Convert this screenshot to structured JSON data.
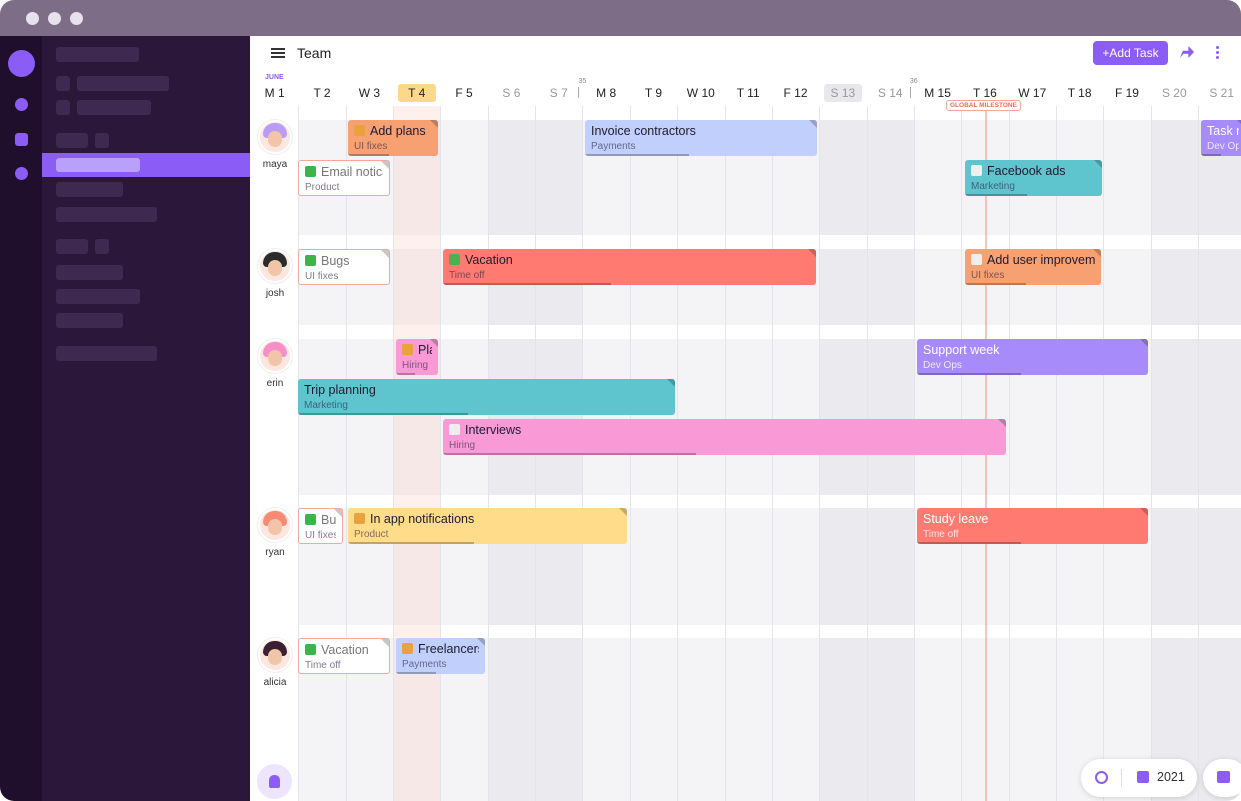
{
  "header": {
    "title": "Team",
    "add_button": "+Add Task"
  },
  "calendar": {
    "month": "JUNE",
    "weeks": [
      "35",
      "36"
    ],
    "milestone": "GLOBAL MILESTONE",
    "days": [
      "M 1",
      "T 2",
      "W 3",
      "T 4",
      "F 5",
      "S 6",
      "S 7",
      "M 8",
      "T 9",
      "W 10",
      "T 11",
      "F 12",
      "S 13",
      "S 14",
      "M 15",
      "T 16",
      "W 17",
      "T 18",
      "F 19",
      "S 20",
      "S 21"
    ]
  },
  "people": [
    "maya",
    "josh",
    "erin",
    "ryan",
    "alicia"
  ],
  "tasks": [
    {
      "title": "Add plans",
      "tag": "UI fixes"
    },
    {
      "title": "Invoice contractors",
      "tag": "Payments"
    },
    {
      "title": "Task n",
      "tag": "Dev Ops"
    },
    {
      "title": "Email notica",
      "tag": "Product"
    },
    {
      "title": "Facebook ads",
      "tag": "Marketing"
    },
    {
      "title": "Bugs",
      "tag": "UI fixes"
    },
    {
      "title": "Vacation",
      "tag": "Time off"
    },
    {
      "title": "Add user improveme",
      "tag": "UI fixes"
    },
    {
      "title": "Pla",
      "tag": "Hiring"
    },
    {
      "title": "Support week",
      "tag": "Dev Ops"
    },
    {
      "title": "Trip planning",
      "tag": "Marketing"
    },
    {
      "title": "Interviews",
      "tag": "Hiring"
    },
    {
      "title": "Bug",
      "tag": "UI fixes"
    },
    {
      "title": "In app notifications",
      "tag": "Product"
    },
    {
      "title": "Study leave",
      "tag": "Time off"
    },
    {
      "title": "Vacation",
      "tag": "Time off"
    },
    {
      "title": "Freelancers",
      "tag": "Payments"
    }
  ],
  "footer": {
    "year": "2021"
  }
}
